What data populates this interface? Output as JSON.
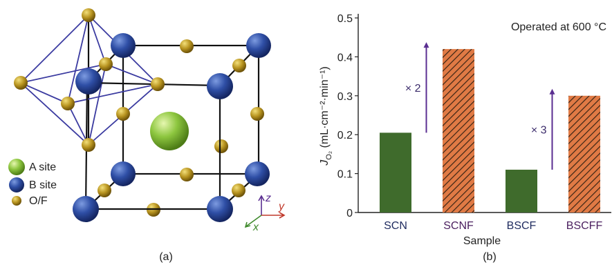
{
  "panel_a": {
    "legend": [
      "A site",
      "B site",
      "O/F"
    ],
    "axes": [
      "z",
      "y",
      "x"
    ],
    "caption": "(a)"
  },
  "chart_data": {
    "type": "bar",
    "caption": "(b)",
    "categories": [
      "SCN",
      "SCNF",
      "BSCF",
      "BSCFF"
    ],
    "values": [
      0.205,
      0.42,
      0.11,
      0.3
    ],
    "colors": [
      "#3f6b2c",
      "#e07a45",
      "#3f6b2c",
      "#e07a45"
    ],
    "hatch": [
      false,
      true,
      false,
      true
    ],
    "xlabel": "Sample",
    "ylabel": {
      "symbol": "J",
      "subscript": "O₂",
      "units": " (mL·cm⁻²·min⁻¹)"
    },
    "ylim": [
      0,
      0.5
    ],
    "yticks": [
      0,
      0.1,
      0.2,
      0.3,
      0.4,
      0.5
    ],
    "annotations": [
      "Operated at 600 °C",
      "× 2",
      "× 3"
    ]
  }
}
